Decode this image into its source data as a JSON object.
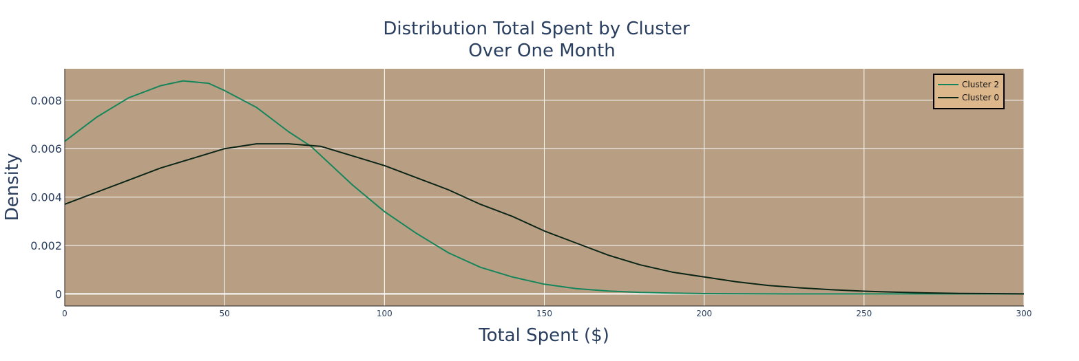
{
  "chart_data": {
    "type": "line",
    "title_line1": "Distribution Total Spent by Cluster",
    "title_line2": "Over One Month",
    "xlabel": "Total Spent ($)",
    "ylabel": "Density",
    "xlim": [
      0,
      300
    ],
    "ylim": [
      -0.0005,
      0.0093
    ],
    "x_ticks": [
      0,
      50,
      100,
      150,
      200,
      250,
      300
    ],
    "x_tick_labels": [
      "0",
      "50",
      "100",
      "150",
      "200",
      "250",
      "300"
    ],
    "y_ticks": [
      0,
      0.002,
      0.004,
      0.006,
      0.008
    ],
    "y_tick_labels": [
      "0",
      "0.002",
      "0.004",
      "0.006",
      "0.008"
    ],
    "grid": true,
    "legend_position": "top-right",
    "colors": {
      "plot_bg": "#b89f84",
      "grid": "#ffffff",
      "legend_bg": "#ddb78c",
      "legend_border": "#000000",
      "text": "#2a3f5f"
    },
    "series": [
      {
        "name": "Cluster 2",
        "color": "#14855a",
        "x": [
          0,
          10,
          20,
          30,
          37,
          45,
          50,
          60,
          70,
          77,
          90,
          100,
          110,
          120,
          130,
          140,
          150,
          160,
          170,
          180,
          190,
          200,
          225,
          250,
          300
        ],
        "y": [
          0.0063,
          0.0073,
          0.0081,
          0.0086,
          0.0088,
          0.0087,
          0.0084,
          0.0077,
          0.0067,
          0.0061,
          0.0045,
          0.0034,
          0.0025,
          0.0017,
          0.0011,
          0.0007,
          0.0004,
          0.00022,
          0.00012,
          6e-05,
          3e-05,
          1e-05,
          0.0,
          0.0,
          0.0
        ]
      },
      {
        "name": "Cluster 0",
        "color": "#0a2416",
        "x": [
          0,
          10,
          20,
          30,
          40,
          50,
          60,
          70,
          80,
          90,
          100,
          110,
          120,
          130,
          140,
          150,
          160,
          170,
          180,
          190,
          200,
          210,
          220,
          230,
          240,
          250,
          260,
          270,
          280,
          290,
          300
        ],
        "y": [
          0.0037,
          0.0042,
          0.0047,
          0.0052,
          0.0056,
          0.006,
          0.0062,
          0.0062,
          0.0061,
          0.0057,
          0.0053,
          0.0048,
          0.0043,
          0.0037,
          0.0032,
          0.0026,
          0.0021,
          0.0016,
          0.0012,
          0.0009,
          0.0007,
          0.0005,
          0.00035,
          0.00025,
          0.00017,
          0.00011,
          7e-05,
          4e-05,
          2e-05,
          1e-05,
          0.0
        ]
      }
    ]
  }
}
